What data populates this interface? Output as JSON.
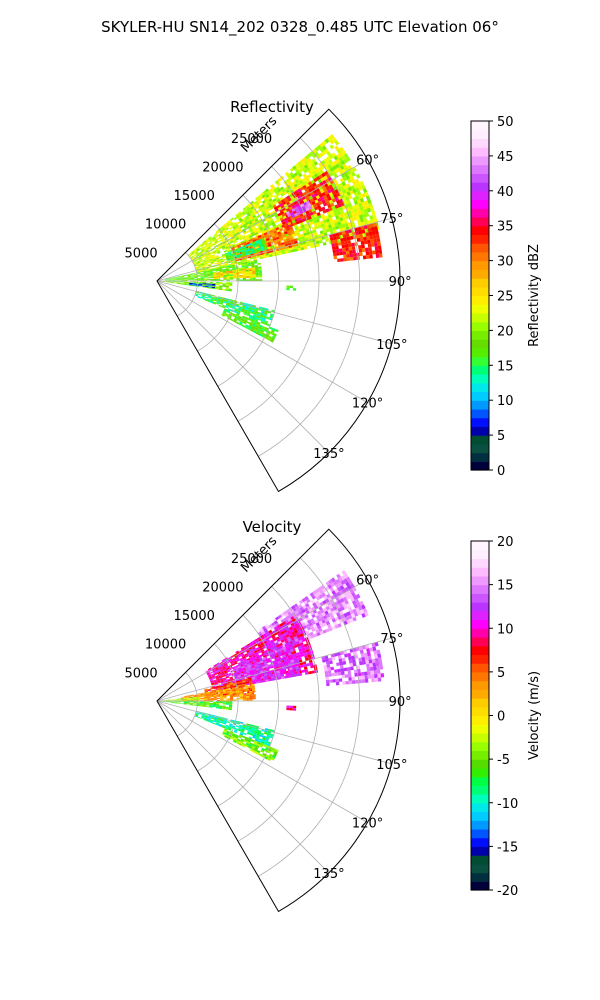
{
  "title": "SKYLER-HU  SN14_202  0328_0.485 UTC Elevation 06°",
  "colors": {
    "reflectivity": [
      "#00003a",
      "#003040",
      "#0a5040",
      "#004d33",
      "#0000aa",
      "#0010ff",
      "#0055ff",
      "#0099ff",
      "#00ccff",
      "#00e8e8",
      "#00ffbb",
      "#00ff77",
      "#33ff33",
      "#55ee00",
      "#66dd00",
      "#77ee00",
      "#99ff00",
      "#c8ff00",
      "#eeff00",
      "#ffee00",
      "#ffdd00",
      "#ffcc00",
      "#ffaa00",
      "#ff9900",
      "#ff7700",
      "#ff5500",
      "#ff2200",
      "#ff0000",
      "#ff0055",
      "#ff00aa",
      "#ff00ff",
      "#dd22ff",
      "#bb33ff",
      "#cc55ff",
      "#dd77ff",
      "#ee99ff",
      "#ffbbff",
      "#ffd8ff",
      "#ffeeff",
      "#fff5ff"
    ],
    "velocity": [
      "#00003a",
      "#003040",
      "#0a5040",
      "#004d33",
      "#0000aa",
      "#0010ff",
      "#0055ff",
      "#0099ff",
      "#00ccff",
      "#00e8e8",
      "#00ffbb",
      "#00ff77",
      "#00ff44",
      "#33ee00",
      "#55dd00",
      "#77ee00",
      "#99ff00",
      "#c8ff00",
      "#eeff00",
      "#ffee00",
      "#ffdd00",
      "#ffcc00",
      "#ffaa00",
      "#ff9900",
      "#ff7700",
      "#ff5500",
      "#ff2200",
      "#ff0000",
      "#ff0055",
      "#ff00aa",
      "#ff00ff",
      "#dd22ff",
      "#bb33ff",
      "#cc55ff",
      "#dd77ff",
      "#ee99ff",
      "#ffbbff",
      "#ffd8ff",
      "#ffeeff",
      "#fff5ff"
    ]
  },
  "chart_data": [
    {
      "type": "heatmap",
      "title": "Reflectivity",
      "radial_label": "Meters",
      "radial_ticks": [
        5000,
        10000,
        15000,
        20000,
        25000
      ],
      "radial_tick_labels": [
        "5000",
        "10000",
        "15000",
        "20000",
        "25000"
      ],
      "radial_max": 30000,
      "theta_ticks": [
        60,
        75,
        90,
        105,
        120,
        135
      ],
      "theta_tick_labels": [
        "60°",
        "75°",
        "90°",
        "105°",
        "120°",
        "135°"
      ],
      "theta_range": [
        45,
        150
      ],
      "colorbar": {
        "label": "Reflectivity dBZ",
        "ticks": [
          0,
          5,
          10,
          15,
          20,
          25,
          30,
          35,
          40,
          45,
          50
        ],
        "tick_labels": [
          "0",
          "5",
          "10",
          "15",
          "20",
          "25",
          "30",
          "35",
          "40",
          "45",
          "50"
        ],
        "range": [
          0,
          50
        ]
      },
      "echo_regions": [
        {
          "theta": [
            50,
            78
          ],
          "r": [
            5000,
            28000
          ],
          "value": 22
        },
        {
          "theta": [
            57,
            68
          ],
          "r": [
            17000,
            25000
          ],
          "value": 34
        },
        {
          "theta": [
            62,
            65
          ],
          "r": [
            18000,
            21000
          ],
          "value": 42
        },
        {
          "theta": [
            66,
            76
          ],
          "r": [
            10000,
            18000
          ],
          "value": 31
        },
        {
          "theta": [
            75,
            84
          ],
          "r": [
            22000,
            28000
          ],
          "value": 33
        },
        {
          "theta": [
            68,
            74
          ],
          "r": [
            9000,
            14000
          ],
          "value": 15
        },
        {
          "theta": [
            78,
            90
          ],
          "r": [
            1000,
            13000
          ],
          "value": 18
        },
        {
          "theta": [
            82,
            88
          ],
          "r": [
            7000,
            12000
          ],
          "value": 26
        },
        {
          "theta": [
            91,
            98
          ],
          "r": [
            500,
            9000
          ],
          "value": 19
        },
        {
          "theta": [
            93,
            97
          ],
          "r": [
            4000,
            7000
          ],
          "value": 8
        },
        {
          "theta": [
            104,
            112
          ],
          "r": [
            5000,
            15000
          ],
          "value": 15
        },
        {
          "theta": [
            112,
            118
          ],
          "r": [
            9000,
            16000
          ],
          "value": 17
        },
        {
          "theta": [
            92,
            94
          ],
          "r": [
            16000,
            17000
          ],
          "value": 17
        }
      ]
    },
    {
      "type": "heatmap",
      "title": "Velocity",
      "radial_label": "Meters",
      "radial_ticks": [
        5000,
        10000,
        15000,
        20000,
        25000
      ],
      "radial_tick_labels": [
        "5000",
        "10000",
        "15000",
        "20000",
        "25000"
      ],
      "radial_max": 30000,
      "theta_ticks": [
        60,
        75,
        90,
        105,
        120,
        135
      ],
      "theta_tick_labels": [
        "60°",
        "75°",
        "90°",
        "105°",
        "120°",
        "135°"
      ],
      "theta_range": [
        45,
        150
      ],
      "colorbar": {
        "label": "Velocity (m/s)",
        "ticks": [
          -20,
          -15,
          -10,
          -5,
          0,
          5,
          10,
          15,
          20
        ],
        "tick_labels": [
          "-20",
          "-15",
          "-10",
          "-5",
          "0",
          "5",
          "10",
          "15",
          "20"
        ],
        "range": [
          -20,
          20
        ]
      },
      "echo_regions": [
        {
          "theta": [
            55,
            68
          ],
          "r": [
            15000,
            28000
          ],
          "value": 15
        },
        {
          "theta": [
            58,
            80
          ],
          "r": [
            7000,
            20000
          ],
          "value": 10
        },
        {
          "theta": [
            66,
            80
          ],
          "r": [
            10000,
            18000
          ],
          "value": 12
        },
        {
          "theta": [
            75,
            85
          ],
          "r": [
            21000,
            28000
          ],
          "value": 14
        },
        {
          "theta": [
            76,
            86
          ],
          "r": [
            6000,
            12000
          ],
          "value": 6
        },
        {
          "theta": [
            80,
            90
          ],
          "r": [
            3000,
            12000
          ],
          "value": 3
        },
        {
          "theta": [
            84,
            90
          ],
          "r": [
            500,
            5000
          ],
          "value": -3
        },
        {
          "theta": [
            90,
            97
          ],
          "r": [
            500,
            9000
          ],
          "value": -6
        },
        {
          "theta": [
            104,
            112
          ],
          "r": [
            5000,
            15000
          ],
          "value": -9
        },
        {
          "theta": [
            112,
            118
          ],
          "r": [
            9000,
            16000
          ],
          "value": -5
        },
        {
          "theta": [
            92,
            94
          ],
          "r": [
            16000,
            17000
          ],
          "value": 10
        }
      ]
    }
  ]
}
